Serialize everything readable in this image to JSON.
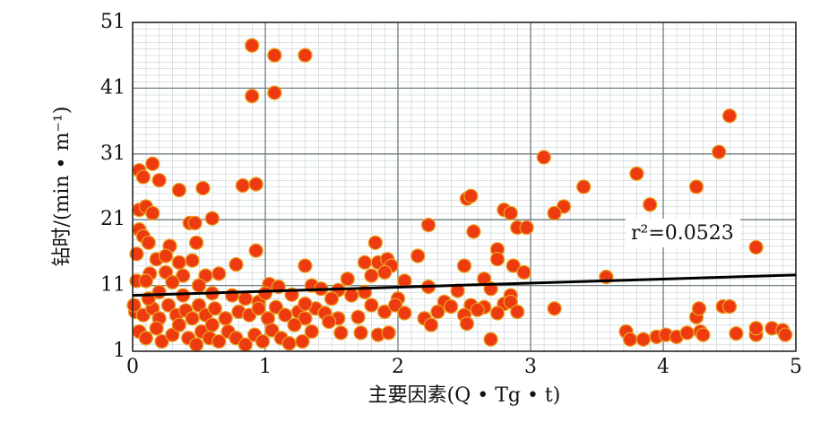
{
  "chart_data": {
    "type": "scatter",
    "xlabel": "主要因素(Q • Tg • t)",
    "ylabel": "钻时/(min • m⁻¹)",
    "annotation": "r²=0.0523",
    "xlim": [
      0,
      5
    ],
    "xticks": [
      0,
      1,
      2,
      3,
      4,
      5
    ],
    "ylim": [
      1,
      51
    ],
    "yticks": [
      1,
      11,
      21,
      31,
      41,
      51
    ],
    "grid": true,
    "color": "#ee3a10",
    "edge_color": "#e8a020",
    "x": [
      0.9,
      1.07,
      1.3,
      0.9,
      1.07,
      4.5,
      4.42,
      3.1,
      0.15,
      0.05,
      0.08,
      0.2,
      3.8,
      0.35,
      0.53,
      0.83,
      0.93,
      2.52,
      2.55,
      3.4,
      4.25,
      3.9,
      3.25,
      3.18,
      0.05,
      0.1,
      0.15,
      2.8,
      2.85,
      0.43,
      0.47,
      0.6,
      2.23,
      2.9,
      2.97,
      0.05,
      0.08,
      2.57,
      0.12,
      0.28,
      0.48,
      0.93,
      1.83,
      2.75,
      4.7,
      0.03,
      0.18,
      0.25,
      0.35,
      0.45,
      0.78,
      1.3,
      1.75,
      1.85,
      1.92,
      1.95,
      2.15,
      2.75,
      2.87,
      2.95,
      2.5,
      0.13,
      0.25,
      0.38,
      0.55,
      0.65,
      1.62,
      1.8,
      1.9,
      2.65,
      2.05,
      3.57,
      0.03,
      0.1,
      0.3,
      0.5,
      1.03,
      1.1,
      1.35,
      1.42,
      1.55,
      1.65,
      1.75,
      2.23,
      2.45,
      2.7,
      2.85,
      0.6,
      0.75,
      0.85,
      0.95,
      1.2,
      1.5,
      2,
      2.35,
      2.55,
      2.65,
      2.8,
      3.18,
      0.02,
      0.08,
      0.15,
      0.2,
      0.27,
      0.33,
      0.4,
      0.45,
      0.5,
      0.55,
      0.62,
      0.7,
      0.8,
      0.88,
      0.95,
      1.02,
      1.08,
      1.15,
      1.25,
      1.3,
      1.38,
      1.45,
      1.55,
      1.7,
      1.8,
      1.9,
      1.98,
      2.05,
      2.2,
      2.3,
      2.4,
      2.5,
      2.6,
      2.75,
      2.85,
      2.9,
      0.05,
      0.1,
      0.18,
      0.22,
      0.3,
      0.35,
      0.42,
      0.48,
      0.52,
      0.58,
      0.65,
      0.72,
      0.78,
      0.85,
      0.92,
      0.98,
      1.05,
      1.12,
      1.18,
      1.22,
      1.28,
      1.35,
      1.48,
      1.57,
      1.72,
      1.85,
      1.93,
      2.25,
      2.52,
      2.7,
      3.72,
      3.75,
      3.85,
      3.95,
      4.02,
      4.1,
      4.18,
      4.25,
      4.27,
      4.28,
      4.3,
      4.45,
      4.5,
      4.55,
      4.7,
      4.7,
      4.82,
      4.9,
      4.92,
      0.01,
      0.12,
      0.2,
      0.38,
      0.6,
      1.0,
      1.3
    ],
    "values": [
      47.5,
      46,
      46,
      39.8,
      40.3,
      36.8,
      31.3,
      30.5,
      29.5,
      28.5,
      27.5,
      27,
      28,
      25.5,
      25.8,
      26.2,
      26.4,
      24.2,
      24.6,
      26,
      26,
      23.3,
      23,
      22,
      22.5,
      23,
      22,
      22.5,
      22,
      20.5,
      20.5,
      21.2,
      20.2,
      19.8,
      19.8,
      19.5,
      18.5,
      19.2,
      17.5,
      17,
      17.5,
      16.3,
      17.5,
      16.5,
      16.8,
      15.8,
      15,
      15.5,
      14.5,
      14.8,
      14.2,
      14,
      14.5,
      14.5,
      15,
      14,
      15.5,
      15,
      14,
      13,
      14,
      12.8,
      13,
      12.5,
      12.5,
      12.8,
      12,
      12.5,
      13,
      12,
      11.7,
      12.3,
      11.7,
      11.7,
      11.5,
      11,
      11.2,
      10.8,
      11,
      10.5,
      10.3,
      9.5,
      10,
      10.8,
      10.2,
      10.5,
      9.5,
      9.8,
      9.5,
      9,
      8.5,
      9.6,
      9,
      9,
      8.5,
      8,
      7.7,
      8.2,
      7.5,
      7,
      6.5,
      7.5,
      6,
      8,
      6.5,
      7.2,
      6,
      8,
      6.5,
      7.5,
      6,
      7,
      6.5,
      7.5,
      6,
      7.7,
      6.5,
      7,
      6,
      7.5,
      6.8,
      6,
      6.2,
      8,
      7,
      8,
      6.8,
      6,
      7,
      7.8,
      6.5,
      7.3,
      6.8,
      8.5,
      7,
      4,
      3,
      4.5,
      2.5,
      3.5,
      5,
      3,
      2,
      4,
      3,
      2.5,
      4,
      3,
      2,
      3.5,
      2.5,
      4.2,
      3,
      2.2,
      5,
      2.5,
      4,
      5.5,
      3.8,
      3.8,
      3.5,
      3.8,
      5,
      5.2,
      2.8,
      4,
      2.8,
      2.8,
      3.2,
      3.5,
      3.2,
      3.8,
      6.2,
      7.5,
      4,
      3.5,
      7.8,
      7.8,
      3.7,
      3.5,
      4.5,
      4.5,
      4.2,
      3.5,
      8,
      9,
      10,
      9.5,
      5,
      9.8,
      8.2
    ],
    "trend_line": {
      "x": [
        0,
        5
      ],
      "values": [
        9.5,
        12.6
      ],
      "color": "#000000"
    }
  }
}
